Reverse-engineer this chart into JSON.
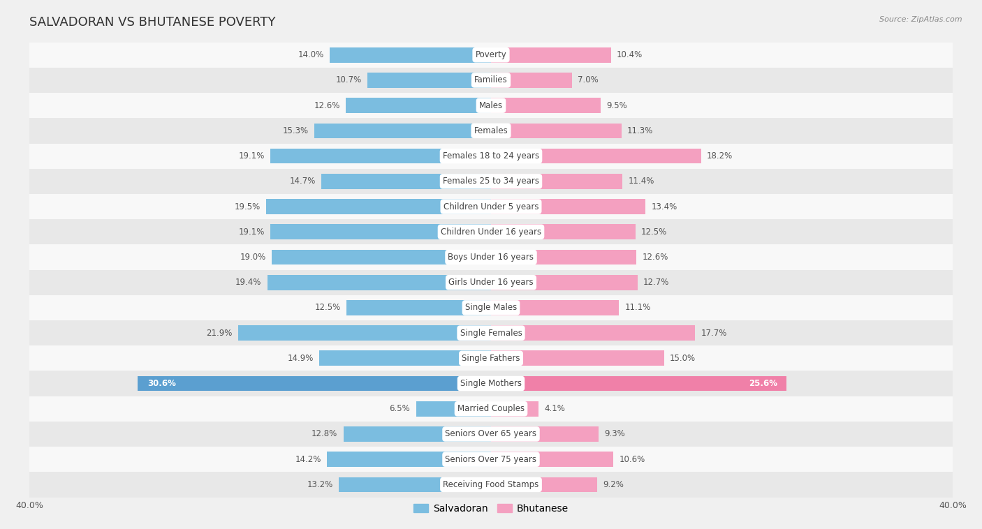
{
  "title": "SALVADORAN VS BHUTANESE POVERTY",
  "source": "Source: ZipAtlas.com",
  "categories": [
    "Poverty",
    "Families",
    "Males",
    "Females",
    "Females 18 to 24 years",
    "Females 25 to 34 years",
    "Children Under 5 years",
    "Children Under 16 years",
    "Boys Under 16 years",
    "Girls Under 16 years",
    "Single Males",
    "Single Females",
    "Single Fathers",
    "Single Mothers",
    "Married Couples",
    "Seniors Over 65 years",
    "Seniors Over 75 years",
    "Receiving Food Stamps"
  ],
  "salvadoran": [
    14.0,
    10.7,
    12.6,
    15.3,
    19.1,
    14.7,
    19.5,
    19.1,
    19.0,
    19.4,
    12.5,
    21.9,
    14.9,
    30.6,
    6.5,
    12.8,
    14.2,
    13.2
  ],
  "bhutanese": [
    10.4,
    7.0,
    9.5,
    11.3,
    18.2,
    11.4,
    13.4,
    12.5,
    12.6,
    12.7,
    11.1,
    17.7,
    15.0,
    25.6,
    4.1,
    9.3,
    10.6,
    9.2
  ],
  "salvadoran_color": "#7bbde0",
  "bhutanese_color": "#f4a0c0",
  "salvadoran_highlight_color": "#5b9fd0",
  "bhutanese_highlight_color": "#f080a8",
  "highlight_indices": [
    13
  ],
  "background_color": "#f0f0f0",
  "row_color_light": "#f8f8f8",
  "row_color_dark": "#e8e8e8",
  "bar_height": 0.6,
  "xlim": 40.0,
  "label_color": "#555555",
  "label_fontsize": 8.5,
  "cat_fontsize": 8.5,
  "legend_labels": [
    "Salvadoran",
    "Bhutanese"
  ]
}
